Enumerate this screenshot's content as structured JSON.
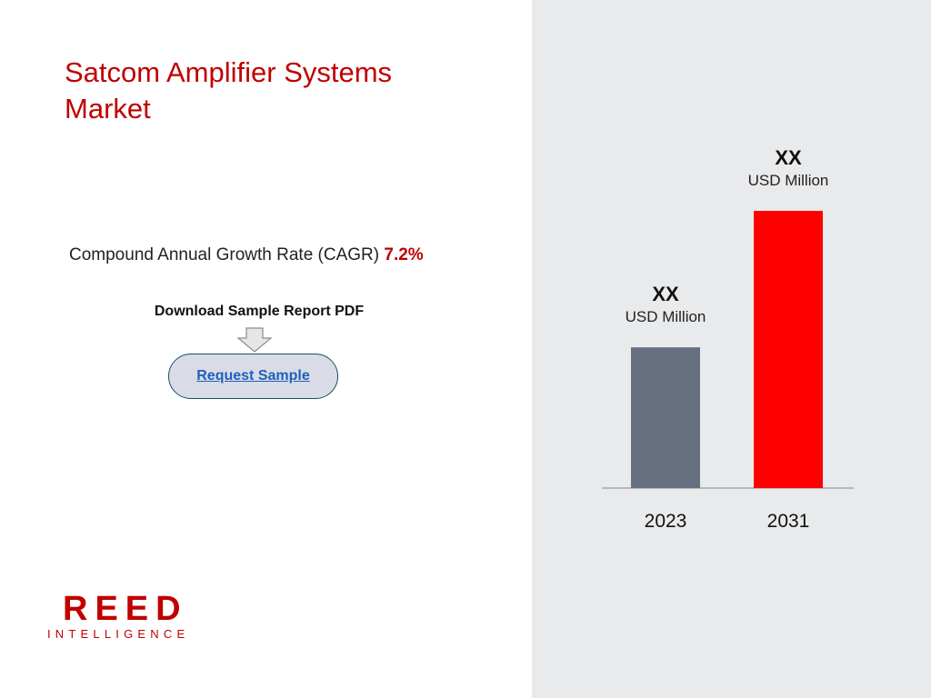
{
  "title": "Satcom Amplifier Systems Market",
  "cagr": {
    "label": "Compound Annual Growth Rate (CAGR)",
    "value": "7.2%"
  },
  "download": {
    "label": "Download Sample Report PDF",
    "button_label": "Request Sample"
  },
  "logo": {
    "main": "REED",
    "sub": "INTELLIGENCE"
  },
  "colors": {
    "brand_red": "#c00000",
    "bar_2023": "#667080",
    "bar_2031": "#ff0000",
    "panel_bg": "#e9eaec"
  },
  "chart_data": {
    "type": "bar",
    "categories": [
      "2023",
      "2031"
    ],
    "values": [
      1,
      1.97
    ],
    "data_labels": [
      {
        "value": "XX",
        "unit": "USD Million"
      },
      {
        "value": "XX",
        "unit": "USD Million"
      }
    ],
    "title": "",
    "xlabel": "",
    "ylabel": "",
    "ylim": [
      0,
      1.97
    ],
    "grid": false
  }
}
